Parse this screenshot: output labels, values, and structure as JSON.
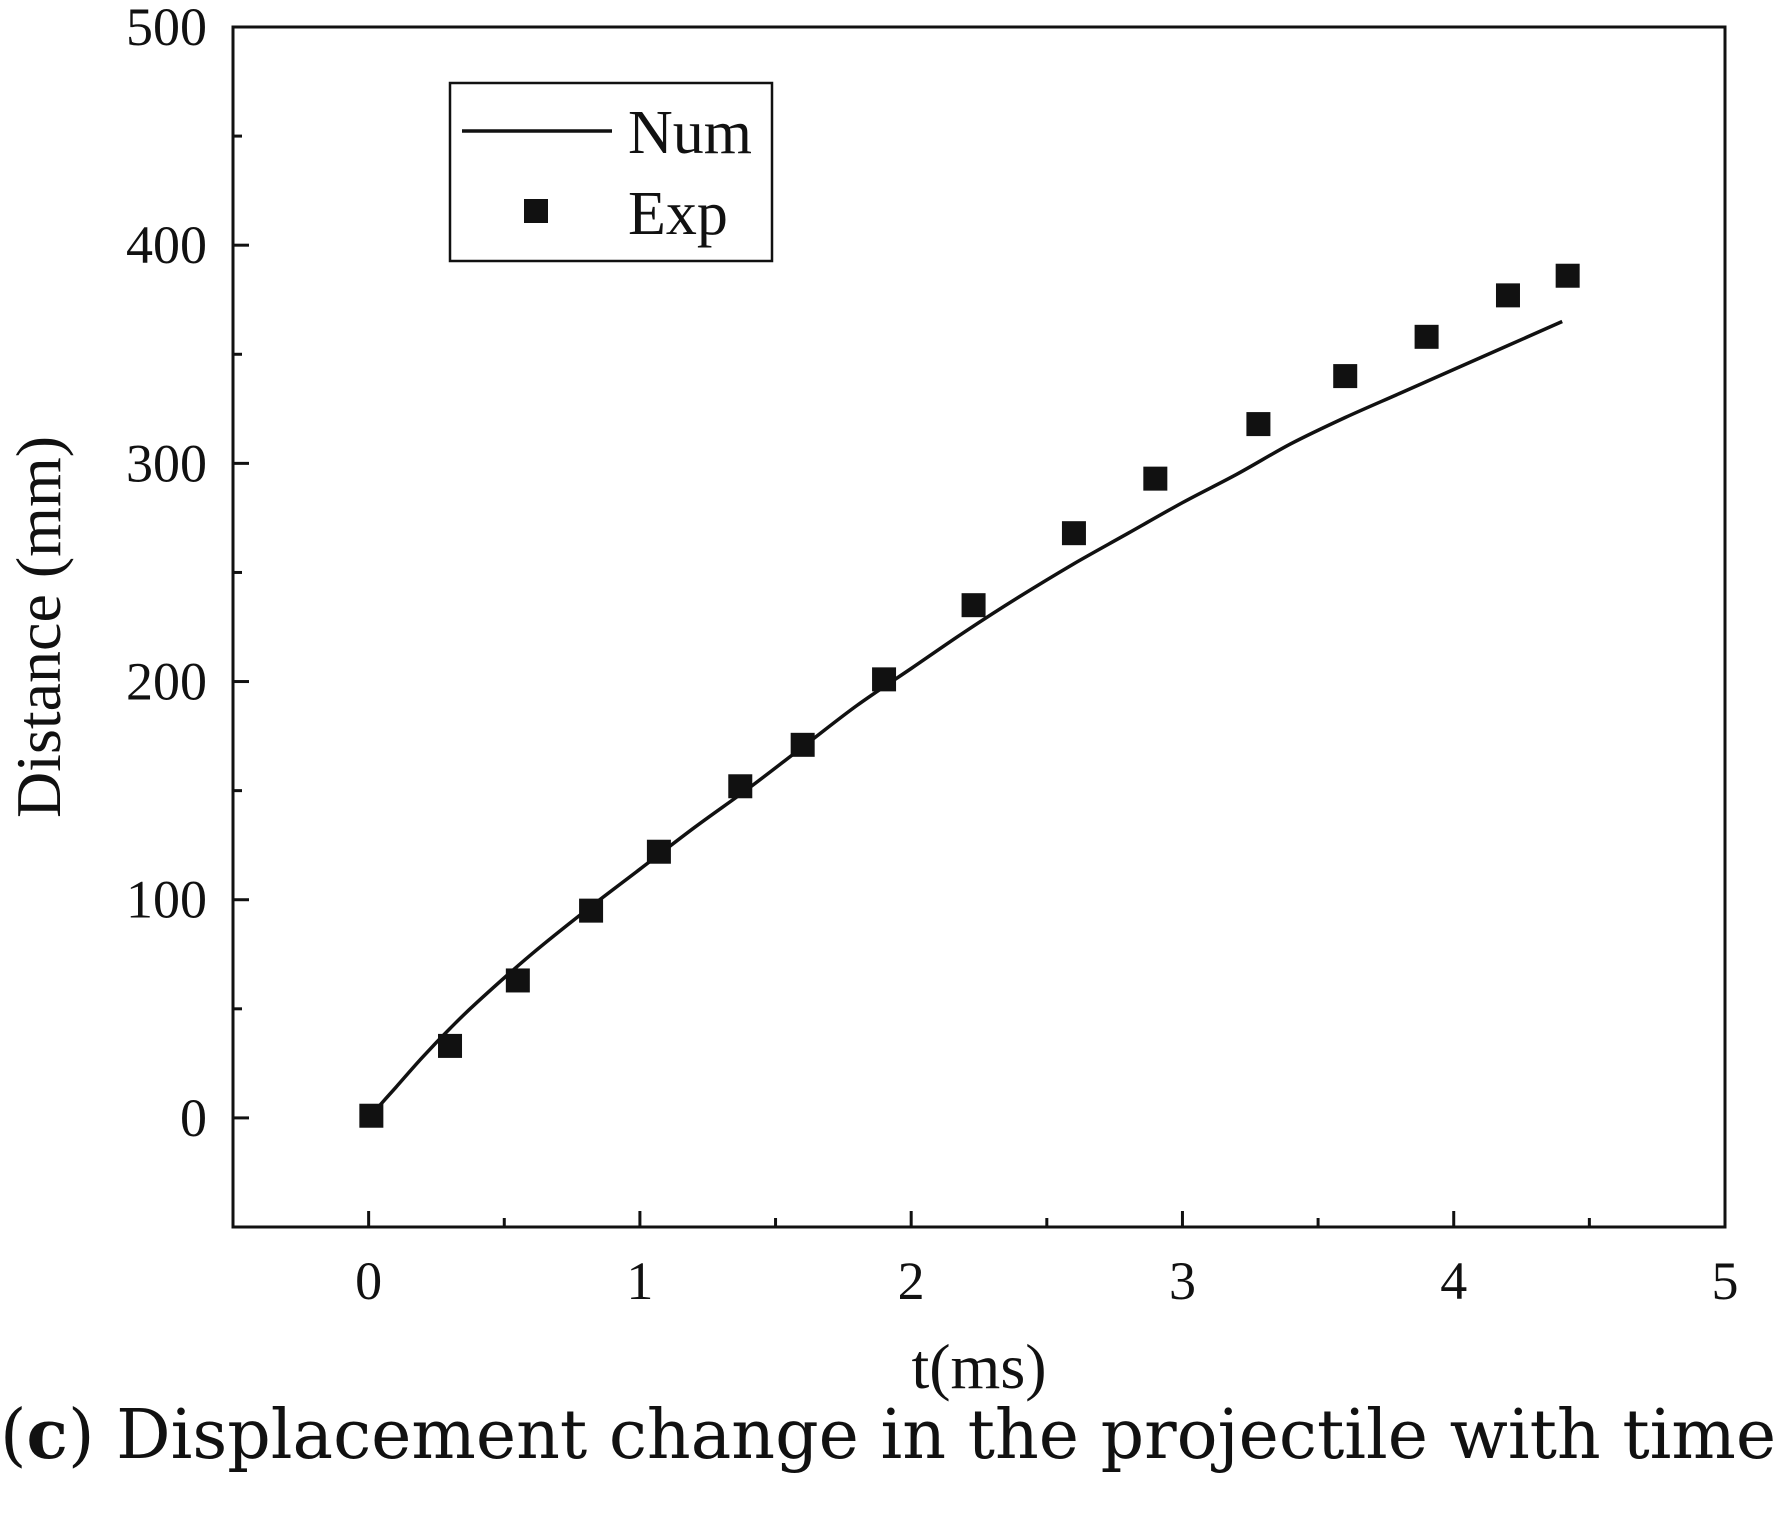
{
  "chart_data": {
    "type": "line",
    "xlabel": "t(ms)",
    "ylabel": "Distance (mm)",
    "xlim": [
      -0.5,
      5
    ],
    "ylim": [
      -50,
      500
    ],
    "x_ticks": [
      0,
      1,
      2,
      3,
      4,
      5
    ],
    "x_tick_labels": [
      "0",
      "1",
      "2",
      "3",
      "4",
      "5"
    ],
    "y_ticks": [
      0,
      100,
      200,
      300,
      400,
      500
    ],
    "y_tick_labels": [
      "0",
      "100",
      "200",
      "300",
      "400",
      "500"
    ],
    "grid": false,
    "legend_position": "top-left",
    "series": [
      {
        "name": "Num",
        "style": "line",
        "color": "#111111",
        "x": [
          0.0,
          0.1,
          0.2,
          0.3,
          0.4,
          0.6,
          0.8,
          1.0,
          1.2,
          1.4,
          1.6,
          1.8,
          2.0,
          2.2,
          2.4,
          2.6,
          2.8,
          3.0,
          3.2,
          3.4,
          3.6,
          3.8,
          4.0,
          4.2,
          4.4
        ],
        "y": [
          0,
          14,
          28,
          41,
          53,
          75,
          95,
          114,
          133,
          151,
          170,
          189,
          206,
          223,
          239,
          254,
          268,
          282,
          295,
          309,
          321,
          332,
          343,
          354,
          365
        ]
      },
      {
        "name": "Exp",
        "style": "scatter",
        "marker": "square",
        "color": "#111111",
        "x": [
          0.01,
          0.3,
          0.55,
          0.82,
          1.07,
          1.37,
          1.6,
          1.9,
          2.23,
          2.6,
          2.9,
          3.28,
          3.6,
          3.9,
          4.2,
          4.42
        ],
        "y": [
          1,
          33,
          63,
          95,
          122,
          152,
          171,
          201,
          235,
          268,
          293,
          318,
          340,
          358,
          377,
          386
        ]
      }
    ]
  },
  "caption": {
    "label": "c",
    "open_paren": "(",
    "close_paren": ")",
    "text": " Displacement change in the projectile with time"
  }
}
